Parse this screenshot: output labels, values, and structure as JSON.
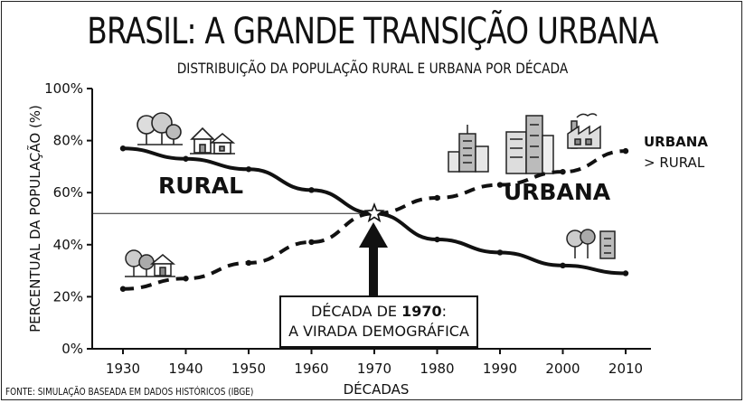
{
  "title": "BRASIL: A GRANDE TRANSIÇÃO URBANA",
  "subtitle": "DISTRIBUIÇÃO DA POPULAÇÃO RURAL E URBANA POR DÉCADA",
  "source": "FONTE: SIMULAÇÃO BASEADA EM DADOS HISTÓRICOS (IBGE)",
  "labels": {
    "rural": "RURAL",
    "urbana": "URBANA",
    "side_title": "URBANA",
    "side_sub": "> RURAL",
    "callout_line1_prefix": "DÉCADA DE ",
    "callout_year": "1970",
    "callout_line1_suffix": ":",
    "callout_line2": "A VIRADA DEMOGRÁFICA"
  },
  "icons": [
    "trees-icon",
    "houses-icon",
    "trees-house-icon",
    "skyscraper-icon",
    "city-buildings-icon",
    "factory-icon",
    "tree-building-icon",
    "star-icon",
    "up-arrow-icon"
  ],
  "chart_data": {
    "type": "line",
    "title": "BRASIL: A GRANDE TRANSIÇÃO URBANA",
    "subtitle": "DISTRIBUIÇÃO DA POPULAÇÃO RURAL E URBANA POR DÉCADA",
    "xlabel": "DÉCADAS",
    "ylabel": "PERCENTUAL DA POPULAÇÃO (%)",
    "x": [
      1930,
      1940,
      1950,
      1960,
      1970,
      1980,
      1990,
      2000,
      2010
    ],
    "ylim": [
      0,
      100
    ],
    "yticks": [
      "0%",
      "20%",
      "40%",
      "60%",
      "80%",
      "100%"
    ],
    "grid": false,
    "series": [
      {
        "name": "RURAL",
        "style": "solid",
        "values": [
          77,
          73,
          69,
          61,
          52,
          42,
          37,
          32,
          29
        ]
      },
      {
        "name": "URBANA",
        "style": "dashed",
        "values": [
          23,
          27,
          33,
          41,
          52,
          58,
          63,
          68,
          76
        ]
      }
    ],
    "crossover": {
      "x": 1970,
      "y": 52
    }
  }
}
